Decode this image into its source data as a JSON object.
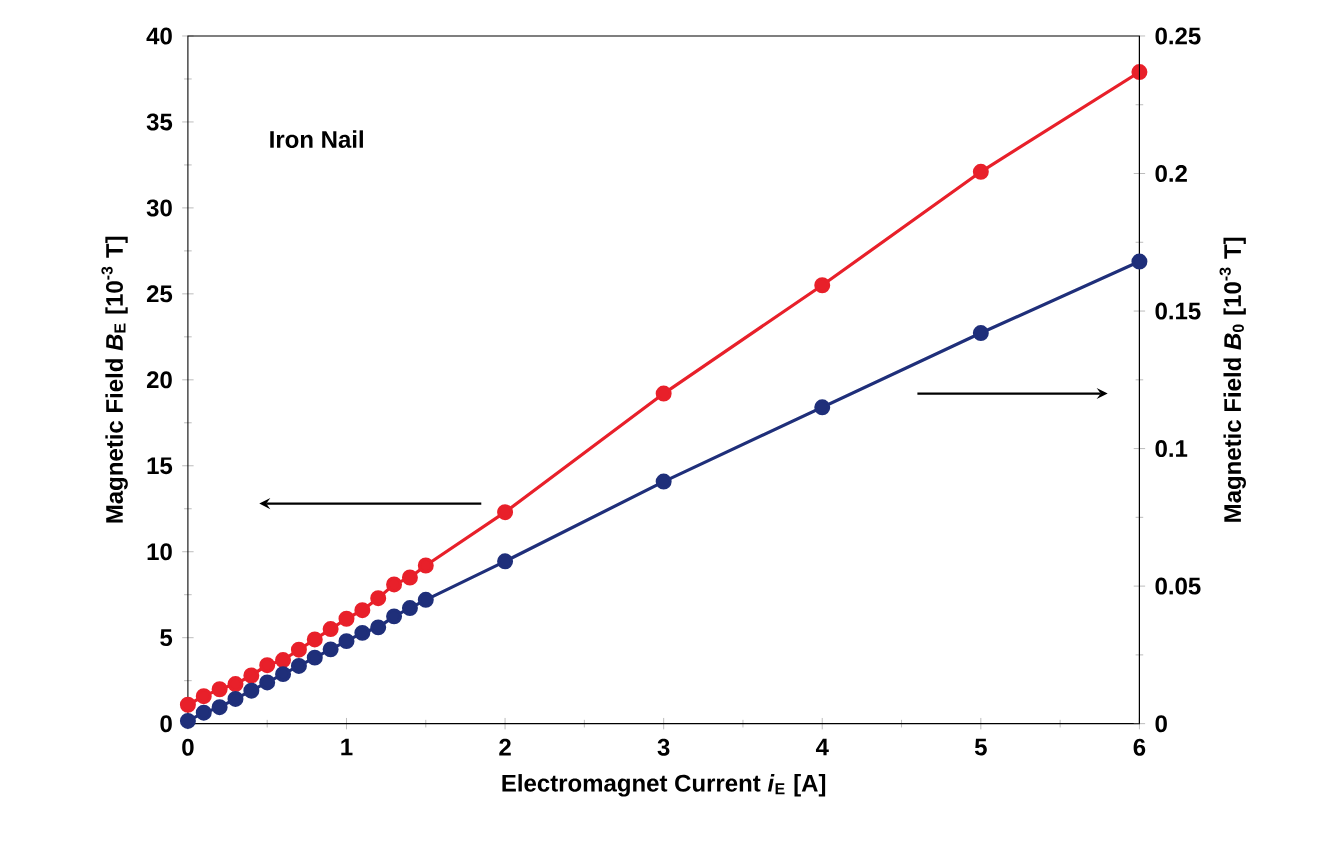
{
  "chart_data": {
    "type": "line",
    "xlabel": "Electromagnet Current *i*$_{E}$ [A]",
    "ylabel": "Magnetic Field *B*$_{E}$ [10$^{-3}$ T]",
    "y2label": "Magnetic Field *B*$_{0}$ [10$^{-3}$ T]",
    "annotations": [
      "Iron Nail"
    ],
    "xlim": [
      0,
      6
    ],
    "xticks": [
      0,
      1,
      2,
      3,
      4,
      5,
      6
    ],
    "ylim": [
      0,
      40
    ],
    "yticks": [
      0,
      5,
      10,
      15,
      20,
      25,
      30,
      35,
      40
    ],
    "y2lim": [
      0,
      0.25
    ],
    "y2ticks": [
      0,
      0.05,
      0.1,
      0.15,
      0.2,
      0.25
    ],
    "marker": "circle",
    "line_style": "solid",
    "grid": false,
    "series": [
      {
        "color": "#e8202a",
        "x": [
          0,
          0.1,
          0.2,
          0.3,
          0.4,
          0.5,
          0.6,
          0.7,
          0.8,
          0.9,
          1.0,
          1.1,
          1.2,
          1.3,
          1.4,
          1.5,
          2,
          3,
          4,
          5,
          6
        ],
        "values": [
          1.1,
          1.6,
          2.0,
          2.3,
          2.8,
          3.4,
          3.7,
          4.3,
          4.9,
          5.5,
          6.1,
          6.6,
          7.3,
          8.1,
          8.5,
          9.2,
          12.3,
          19.2,
          25.5,
          32.1,
          37.9
        ]
      },
      {
        "color": "#1f2f7a",
        "axis": "y2",
        "x": [
          0,
          0.1,
          0.2,
          0.3,
          0.4,
          0.5,
          0.6,
          0.7,
          0.8,
          0.9,
          1.0,
          1.1,
          1.2,
          1.3,
          1.4,
          1.5,
          2,
          3,
          4,
          5,
          6
        ],
        "values": [
          0.001,
          0.004,
          0.006,
          0.009,
          0.012,
          0.015,
          0.018,
          0.021,
          0.024,
          0.027,
          0.03,
          0.033,
          0.035,
          0.039,
          0.042,
          0.045,
          0.059,
          0.088,
          0.115,
          0.142,
          0.168
        ]
      }
    ]
  }
}
